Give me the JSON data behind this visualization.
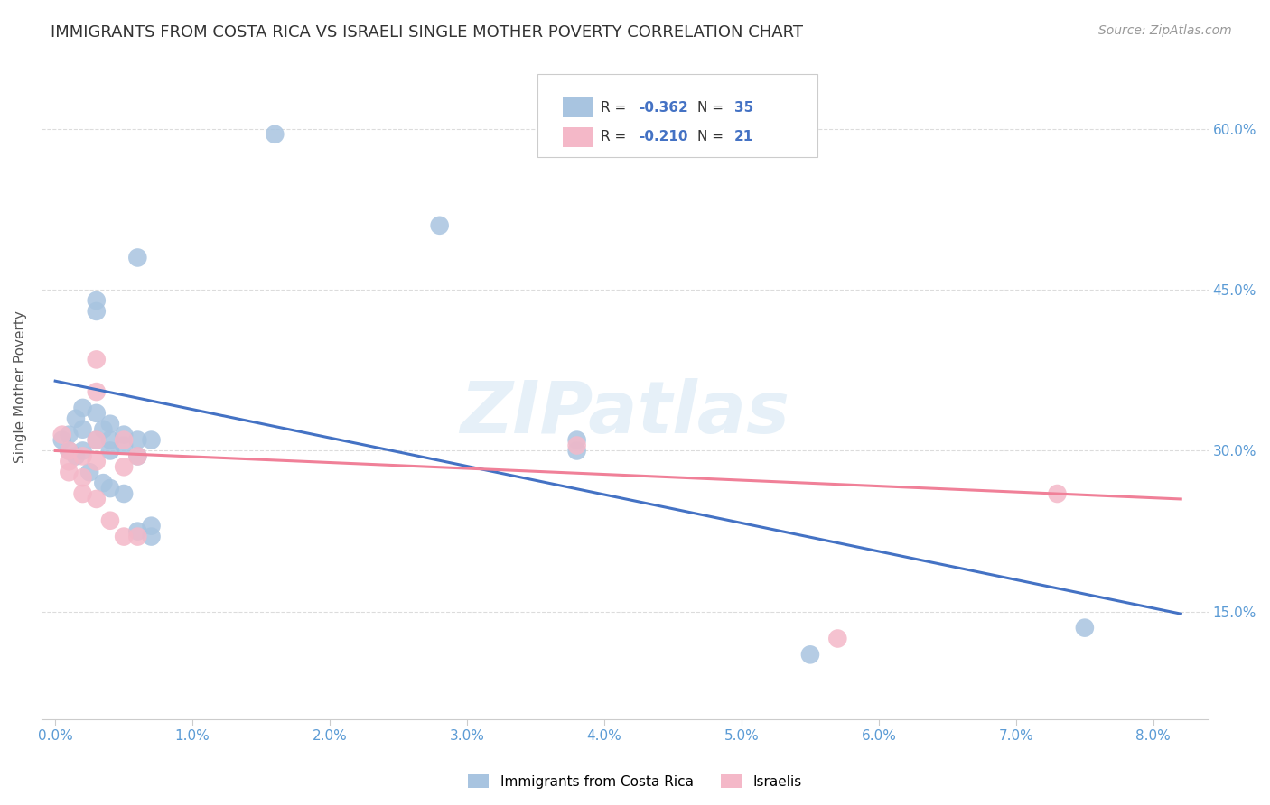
{
  "title": "IMMIGRANTS FROM COSTA RICA VS ISRAELI SINGLE MOTHER POVERTY CORRELATION CHART",
  "source": "Source: ZipAtlas.com",
  "ylabel": "Single Mother Poverty",
  "y_tick_labels": [
    "15.0%",
    "30.0%",
    "45.0%",
    "60.0%"
  ],
  "ylim": [
    0.05,
    0.67
  ],
  "xlim": [
    -0.001,
    0.084
  ],
  "legend_blue_r": "-0.362",
  "legend_blue_n": "35",
  "legend_pink_r": "-0.210",
  "legend_pink_n": "21",
  "blue_color": "#A8C4E0",
  "pink_color": "#F4B8C8",
  "trendline_blue": "#4472C4",
  "trendline_pink": "#F08098",
  "blue_scatter": [
    [
      0.0005,
      0.31
    ],
    [
      0.001,
      0.3
    ],
    [
      0.001,
      0.315
    ],
    [
      0.0015,
      0.33
    ],
    [
      0.0015,
      0.295
    ],
    [
      0.002,
      0.34
    ],
    [
      0.002,
      0.32
    ],
    [
      0.002,
      0.3
    ],
    [
      0.0025,
      0.28
    ],
    [
      0.003,
      0.335
    ],
    [
      0.003,
      0.31
    ],
    [
      0.003,
      0.43
    ],
    [
      0.003,
      0.44
    ],
    [
      0.0035,
      0.32
    ],
    [
      0.0035,
      0.27
    ],
    [
      0.004,
      0.325
    ],
    [
      0.004,
      0.31
    ],
    [
      0.004,
      0.3
    ],
    [
      0.004,
      0.265
    ],
    [
      0.005,
      0.315
    ],
    [
      0.005,
      0.305
    ],
    [
      0.005,
      0.26
    ],
    [
      0.006,
      0.48
    ],
    [
      0.006,
      0.31
    ],
    [
      0.006,
      0.295
    ],
    [
      0.006,
      0.225
    ],
    [
      0.007,
      0.31
    ],
    [
      0.007,
      0.23
    ],
    [
      0.007,
      0.22
    ],
    [
      0.016,
      0.595
    ],
    [
      0.028,
      0.51
    ],
    [
      0.038,
      0.31
    ],
    [
      0.038,
      0.3
    ],
    [
      0.055,
      0.11
    ],
    [
      0.075,
      0.135
    ]
  ],
  "pink_scatter": [
    [
      0.0005,
      0.315
    ],
    [
      0.001,
      0.3
    ],
    [
      0.001,
      0.29
    ],
    [
      0.001,
      0.28
    ],
    [
      0.002,
      0.295
    ],
    [
      0.002,
      0.275
    ],
    [
      0.002,
      0.26
    ],
    [
      0.003,
      0.385
    ],
    [
      0.003,
      0.355
    ],
    [
      0.003,
      0.31
    ],
    [
      0.003,
      0.29
    ],
    [
      0.003,
      0.255
    ],
    [
      0.004,
      0.235
    ],
    [
      0.005,
      0.31
    ],
    [
      0.005,
      0.285
    ],
    [
      0.005,
      0.22
    ],
    [
      0.006,
      0.295
    ],
    [
      0.006,
      0.22
    ],
    [
      0.038,
      0.305
    ],
    [
      0.057,
      0.125
    ],
    [
      0.073,
      0.26
    ]
  ],
  "blue_trend_x": [
    0.0,
    0.082
  ],
  "blue_trend_y": [
    0.365,
    0.148
  ],
  "pink_trend_x": [
    0.0,
    0.082
  ],
  "pink_trend_y": [
    0.3,
    0.255
  ],
  "watermark": "ZIPatlas",
  "background_color": "#FFFFFF",
  "grid_color": "#DCDCDC",
  "title_color": "#333333",
  "axis_label_color": "#555555",
  "tick_color": "#5B9BD5",
  "source_color": "#999999"
}
